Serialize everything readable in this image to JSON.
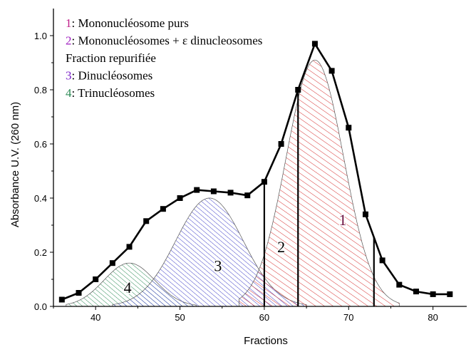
{
  "chart_data": {
    "type": "line",
    "xlabel": "Fractions",
    "ylabel": "Absorbance U.V. (260 nm)",
    "xlim": [
      35,
      84
    ],
    "ylim": [
      0.0,
      1.1
    ],
    "xticks": [
      "40",
      "50",
      "60",
      "70",
      "80"
    ],
    "yticks": [
      "0.0",
      "0.2",
      "0.4",
      "0.6",
      "0.8",
      "1.0"
    ],
    "grid": false,
    "legend_position": "top-left",
    "colors": {
      "line": "#000000",
      "peak1": "#d63030",
      "peak3": "#4040c8",
      "peak4": "#2e8b57",
      "num1": "#c0208a",
      "num2": "#a020c0",
      "num3": "#7a20c8",
      "num4": "#2e8b57",
      "region1_label": "#6b1040"
    },
    "series": [
      {
        "x": [
          36,
          38,
          40,
          42,
          44,
          46,
          48,
          50,
          52,
          54,
          56,
          58,
          60,
          62,
          64,
          66,
          68,
          70,
          72,
          74,
          76,
          78,
          80,
          82
        ],
        "values": [
          0.025,
          0.05,
          0.1,
          0.16,
          0.22,
          0.315,
          0.36,
          0.4,
          0.43,
          0.425,
          0.42,
          0.41,
          0.46,
          0.6,
          0.8,
          0.97,
          0.87,
          0.66,
          0.34,
          0.17,
          0.08,
          0.055,
          0.045,
          0.045
        ]
      }
    ],
    "gaussian_peaks": [
      {
        "id": "1",
        "center": 66,
        "height": 0.91,
        "sigma": 3.4,
        "x_start": 57,
        "x_end": 76
      },
      {
        "id": "3",
        "center": 53.5,
        "height": 0.4,
        "sigma": 4.0,
        "x_start": 42,
        "x_end": 65
      },
      {
        "id": "4",
        "center": 44,
        "height": 0.16,
        "sigma": 3.0,
        "x_start": 36.5,
        "x_end": 52
      }
    ],
    "fraction_cuts": [
      60,
      64,
      73
    ],
    "legend": [
      {
        "num": "1",
        "text": ": Mononucléosome purs"
      },
      {
        "num": "2",
        "text": ": Mononucléosomes + ε dinucleosomes"
      },
      {
        "num": "",
        "text": "Fraction repurifiée"
      },
      {
        "num": "3",
        "text": ": Dinucléosomes"
      },
      {
        "num": "4",
        "text": ": Trinucléosomes"
      }
    ],
    "region_labels": [
      {
        "text": "1",
        "x": 69.3,
        "y": 0.3
      },
      {
        "text": "2",
        "x": 62.0,
        "y": 0.2
      },
      {
        "text": "3",
        "x": 54.5,
        "y": 0.13
      },
      {
        "text": "4",
        "x": 43.8,
        "y": 0.05
      }
    ]
  }
}
